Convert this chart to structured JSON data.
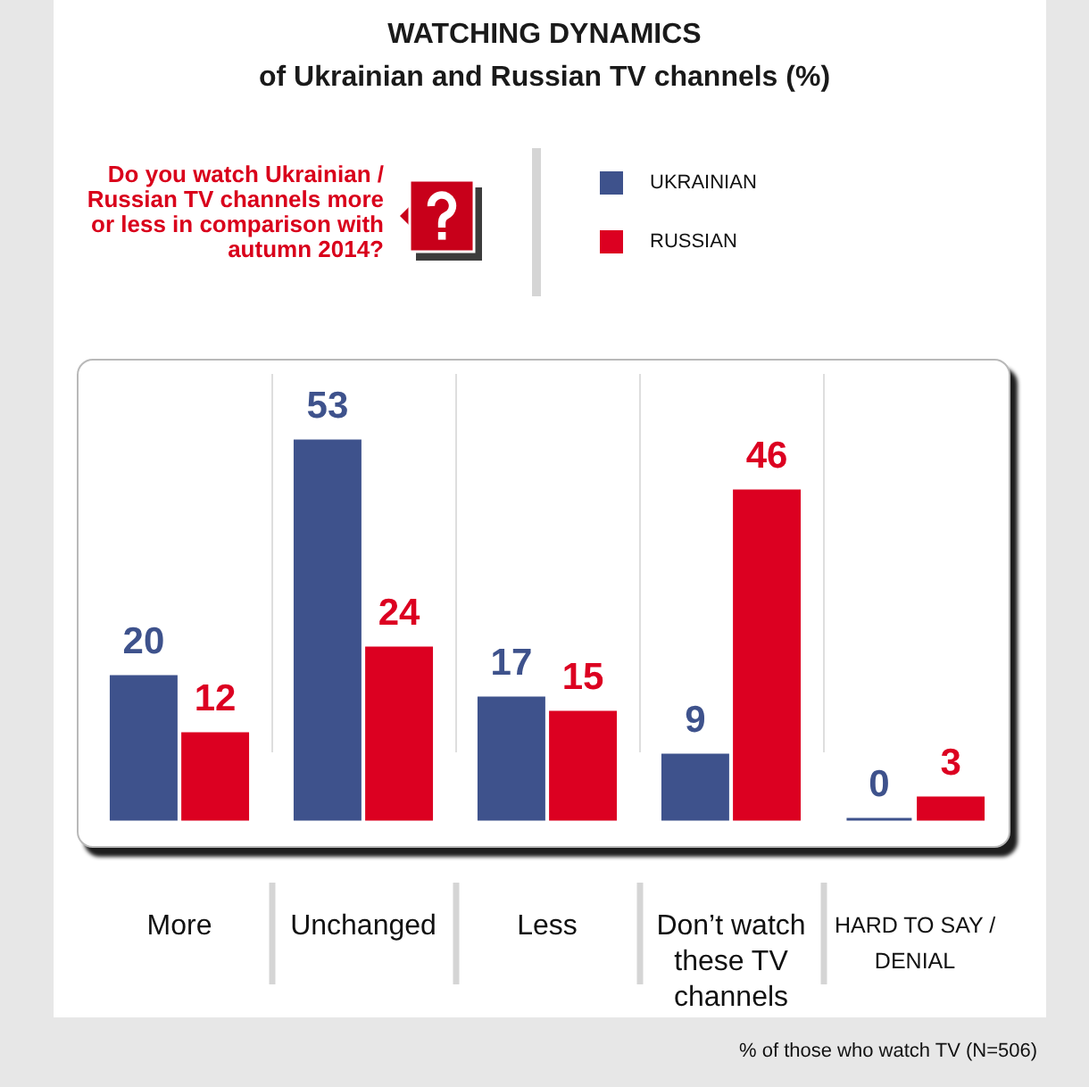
{
  "chart_data": {
    "type": "bar",
    "title": "WATCHING DYNAMICS",
    "subtitle": "of Ukrainian and Russian TV channels (%)",
    "categories": [
      "More",
      "Unchanged",
      "Less",
      "Don’t watch these TV channels",
      "HARD TO SAY / DENIAL"
    ],
    "series": [
      {
        "name": "UKRAINIAN",
        "color": "#3e528c",
        "values": [
          20,
          53,
          17,
          9,
          0
        ]
      },
      {
        "name": "RUSSIAN",
        "color": "#dc0021",
        "values": [
          12,
          24,
          15,
          46,
          3
        ]
      }
    ],
    "data_labels": true,
    "legend": "top",
    "grid": "x",
    "annotations": [
      "Do you watch Ukrainian / Russian TV channels more or less in comparison with autumn 2014?",
      "% of those who watch TV (N=506)"
    ]
  }
}
